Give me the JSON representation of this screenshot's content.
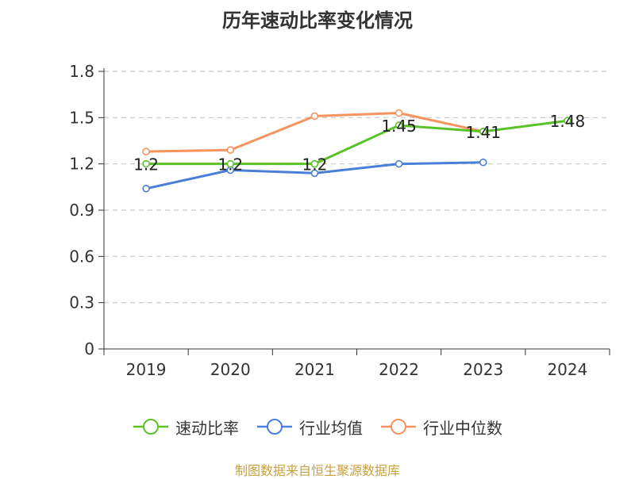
{
  "chart_data": {
    "type": "line",
    "title": "历年速动比率变化情况",
    "categories": [
      "2019",
      "2020",
      "2021",
      "2022",
      "2023",
      "2024"
    ],
    "y_ticks": [
      "0",
      "0.3",
      "0.6",
      "0.9",
      "1.2",
      "1.5",
      "1.8"
    ],
    "ylim": [
      0,
      1.8
    ],
    "grid": true,
    "legend_position": "bottom",
    "series": [
      {
        "name": "速动比率",
        "color": "#5ac229",
        "values": [
          1.2,
          1.2,
          1.2,
          1.45,
          1.41,
          1.48
        ],
        "data_labels": [
          "1.2",
          "1.2",
          "1.2",
          "1.45",
          "1.41",
          "1.48"
        ]
      },
      {
        "name": "行业均值",
        "color": "#4a7fd9",
        "values": [
          1.04,
          1.16,
          1.14,
          1.2,
          1.21,
          null
        ]
      },
      {
        "name": "行业中位数",
        "color": "#f5945e",
        "values": [
          1.28,
          1.29,
          1.51,
          1.53,
          1.41,
          null
        ]
      }
    ]
  },
  "source": "制图数据来自恒生聚源数据库"
}
